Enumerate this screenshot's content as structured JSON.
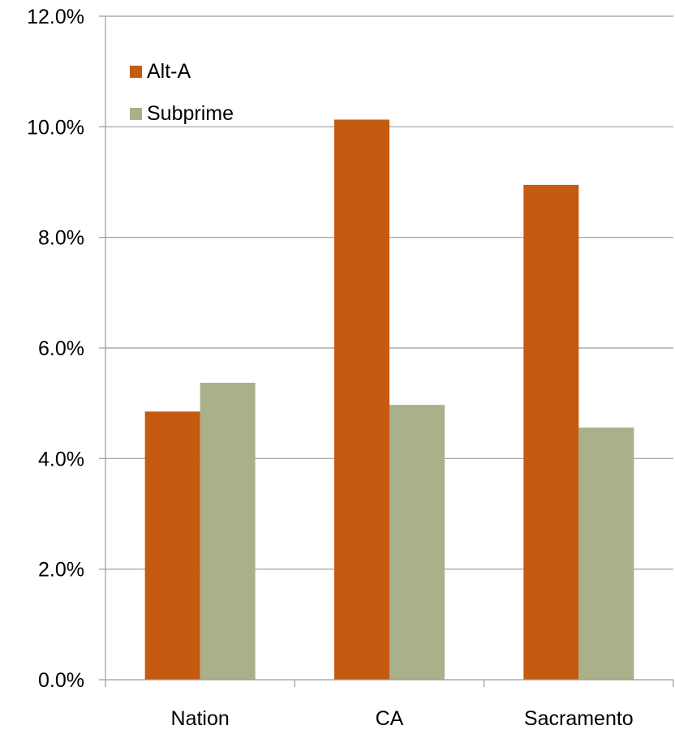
{
  "chart_data": {
    "type": "bar",
    "categories": [
      "Nation",
      "CA",
      "Sacramento"
    ],
    "series": [
      {
        "name": "Alt-A",
        "color": "#C55A11",
        "values": [
          4.85,
          10.13,
          8.95
        ]
      },
      {
        "name": "Subprime",
        "color": "#A9B08A",
        "values": [
          5.37,
          4.97,
          4.56
        ]
      }
    ],
    "title": "",
    "xlabel": "",
    "ylabel": "",
    "ylim": [
      0,
      12
    ],
    "yticks": [
      {
        "value": 0,
        "label": "0.0%"
      },
      {
        "value": 2,
        "label": "2.0%"
      },
      {
        "value": 4,
        "label": "4.0%"
      },
      {
        "value": 6,
        "label": "6.0%"
      },
      {
        "value": 8,
        "label": "8.0%"
      },
      {
        "value": 10,
        "label": "10.0%"
      },
      {
        "value": 12,
        "label": "12.0%"
      }
    ],
    "grid": true,
    "legend_position": "top-left",
    "gridline_color": "#9A9A9A"
  }
}
